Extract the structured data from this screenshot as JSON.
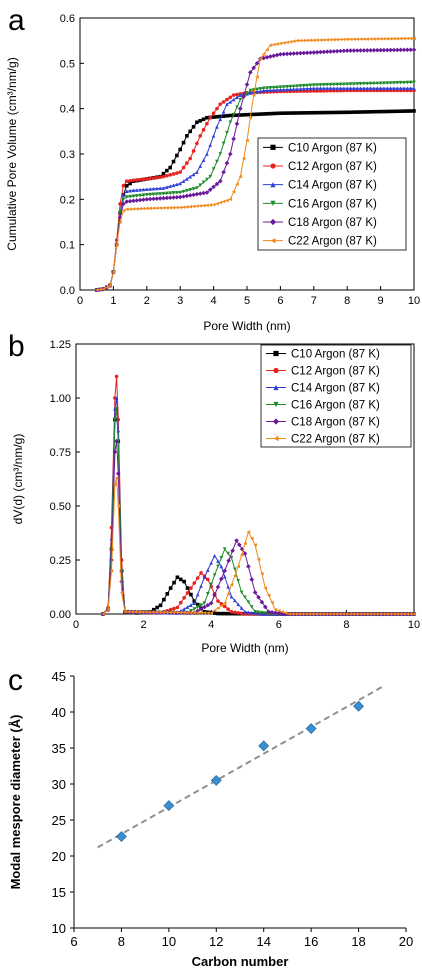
{
  "panel_labels": [
    "a",
    "b",
    "c"
  ],
  "chart_data": [
    {
      "type": "line",
      "xlabel": "Pore Width (nm)",
      "ylabel": "Cumulative Pore Volume (cm³/nm/g)",
      "xlim": [
        0,
        10
      ],
      "ylim": [
        0,
        0.6
      ],
      "xticks": [
        "0",
        "1",
        "2",
        "3",
        "4",
        "5",
        "6",
        "7",
        "8",
        "9",
        "10"
      ],
      "yticks": [
        "0.0",
        "0.1",
        "0.2",
        "0.3",
        "0.4",
        "0.5",
        "0.6"
      ],
      "legend_position": "right",
      "series": [
        {
          "name": "C10 Argon (87 K)",
          "color": "#000000",
          "marker": "square",
          "points": [
            [
              0.5,
              0
            ],
            [
              0.7,
              0.002
            ],
            [
              0.9,
              0.01
            ],
            [
              1.0,
              0.04
            ],
            [
              1.1,
              0.1
            ],
            [
              1.2,
              0.17
            ],
            [
              1.3,
              0.21
            ],
            [
              1.4,
              0.23
            ],
            [
              1.6,
              0.24
            ],
            [
              2.0,
              0.245
            ],
            [
              2.4,
              0.25
            ],
            [
              2.7,
              0.27
            ],
            [
              3.0,
              0.31
            ],
            [
              3.2,
              0.34
            ],
            [
              3.5,
              0.37
            ],
            [
              3.8,
              0.38
            ],
            [
              4.5,
              0.385
            ],
            [
              6.0,
              0.39
            ],
            [
              8.0,
              0.392
            ],
            [
              10.0,
              0.395
            ]
          ]
        },
        {
          "name": "C12 Argon (87 K)",
          "color": "#e8221e",
          "marker": "circle",
          "points": [
            [
              0.5,
              0
            ],
            [
              0.7,
              0.002
            ],
            [
              0.9,
              0.01
            ],
            [
              1.0,
              0.04
            ],
            [
              1.1,
              0.11
            ],
            [
              1.2,
              0.19
            ],
            [
              1.3,
              0.23
            ],
            [
              1.4,
              0.24
            ],
            [
              1.6,
              0.242
            ],
            [
              2.0,
              0.245
            ],
            [
              2.5,
              0.25
            ],
            [
              3.0,
              0.26
            ],
            [
              3.3,
              0.29
            ],
            [
              3.6,
              0.34
            ],
            [
              3.9,
              0.38
            ],
            [
              4.2,
              0.41
            ],
            [
              4.6,
              0.43
            ],
            [
              5.0,
              0.435
            ],
            [
              6.0,
              0.438
            ],
            [
              8.0,
              0.44
            ],
            [
              10.0,
              0.44
            ]
          ]
        },
        {
          "name": "C14 Argon (87 K)",
          "color": "#2f3fd6",
          "marker": "triangle",
          "points": [
            [
              0.5,
              0
            ],
            [
              0.7,
              0.002
            ],
            [
              0.9,
              0.01
            ],
            [
              1.0,
              0.04
            ],
            [
              1.1,
              0.1
            ],
            [
              1.2,
              0.17
            ],
            [
              1.3,
              0.21
            ],
            [
              1.4,
              0.218
            ],
            [
              1.6,
              0.22
            ],
            [
              2.5,
              0.225
            ],
            [
              3.0,
              0.235
            ],
            [
              3.5,
              0.26
            ],
            [
              3.8,
              0.3
            ],
            [
              4.1,
              0.36
            ],
            [
              4.4,
              0.41
            ],
            [
              4.8,
              0.43
            ],
            [
              5.5,
              0.44
            ],
            [
              7.0,
              0.445
            ],
            [
              10.0,
              0.445
            ]
          ]
        },
        {
          "name": "C16 Argon (87 K)",
          "color": "#1f8a2a",
          "marker": "triangle-down",
          "points": [
            [
              0.5,
              0
            ],
            [
              0.7,
              0.002
            ],
            [
              0.9,
              0.01
            ],
            [
              1.0,
              0.04
            ],
            [
              1.1,
              0.1
            ],
            [
              1.2,
              0.17
            ],
            [
              1.3,
              0.2
            ],
            [
              1.4,
              0.205
            ],
            [
              2.0,
              0.21
            ],
            [
              3.0,
              0.215
            ],
            [
              3.5,
              0.225
            ],
            [
              3.9,
              0.25
            ],
            [
              4.2,
              0.3
            ],
            [
              4.5,
              0.37
            ],
            [
              4.8,
              0.42
            ],
            [
              5.1,
              0.44
            ],
            [
              5.5,
              0.445
            ],
            [
              7.0,
              0.452
            ],
            [
              10.0,
              0.458
            ]
          ]
        },
        {
          "name": "C18 Argon (87 K)",
          "color": "#6a1a9a",
          "marker": "diamond",
          "points": [
            [
              0.5,
              0
            ],
            [
              0.7,
              0.002
            ],
            [
              0.9,
              0.01
            ],
            [
              1.0,
              0.04
            ],
            [
              1.1,
              0.1
            ],
            [
              1.2,
              0.16
            ],
            [
              1.3,
              0.19
            ],
            [
              1.4,
              0.195
            ],
            [
              2.0,
              0.2
            ],
            [
              3.0,
              0.205
            ],
            [
              3.8,
              0.215
            ],
            [
              4.2,
              0.24
            ],
            [
              4.5,
              0.3
            ],
            [
              4.8,
              0.4
            ],
            [
              5.1,
              0.48
            ],
            [
              5.4,
              0.51
            ],
            [
              6.0,
              0.52
            ],
            [
              8.0,
              0.528
            ],
            [
              10.0,
              0.53
            ]
          ]
        },
        {
          "name": "C22 Argon (87 K)",
          "color": "#f08a1c",
          "marker": "triangle-left",
          "points": [
            [
              0.5,
              0
            ],
            [
              0.7,
              0.002
            ],
            [
              0.9,
              0.01
            ],
            [
              1.0,
              0.04
            ],
            [
              1.1,
              0.1
            ],
            [
              1.2,
              0.15
            ],
            [
              1.3,
              0.175
            ],
            [
              1.4,
              0.178
            ],
            [
              2.0,
              0.18
            ],
            [
              3.0,
              0.182
            ],
            [
              4.0,
              0.188
            ],
            [
              4.5,
              0.2
            ],
            [
              4.8,
              0.25
            ],
            [
              5.0,
              0.33
            ],
            [
              5.2,
              0.43
            ],
            [
              5.4,
              0.51
            ],
            [
              5.7,
              0.54
            ],
            [
              6.5,
              0.55
            ],
            [
              8.0,
              0.553
            ],
            [
              10.0,
              0.555
            ]
          ]
        }
      ]
    },
    {
      "type": "line",
      "xlabel": "Pore Width (nm)",
      "ylabel": "dV(d) (cm³/nm/g)",
      "xlim": [
        0,
        10
      ],
      "ylim": [
        0,
        1.25
      ],
      "xticks": [
        "0",
        "2",
        "4",
        "6",
        "8",
        "10"
      ],
      "yticks": [
        "0.00",
        "0.25",
        "0.50",
        "0.75",
        "1.00",
        "1.25"
      ],
      "legend_position": "top-right",
      "series": [
        {
          "name": "C10 Argon (87 K)",
          "color": "#000000",
          "marker": "square",
          "points": [
            [
              0.8,
              0
            ],
            [
              0.95,
              0.02
            ],
            [
              1.05,
              0.3
            ],
            [
              1.15,
              0.9
            ],
            [
              1.2,
              0.95
            ],
            [
              1.25,
              0.8
            ],
            [
              1.35,
              0.2
            ],
            [
              1.45,
              0.01
            ],
            [
              1.8,
              0.005
            ],
            [
              2.2,
              0.01
            ],
            [
              2.5,
              0.04
            ],
            [
              2.8,
              0.12
            ],
            [
              3.0,
              0.17
            ],
            [
              3.2,
              0.15
            ],
            [
              3.5,
              0.06
            ],
            [
              3.8,
              0.01
            ],
            [
              4.2,
              0.002
            ],
            [
              6.0,
              0
            ],
            [
              10.0,
              0
            ]
          ]
        },
        {
          "name": "C12 Argon (87 K)",
          "color": "#e8221e",
          "marker": "circle",
          "points": [
            [
              0.8,
              0
            ],
            [
              0.95,
              0.03
            ],
            [
              1.05,
              0.4
            ],
            [
              1.15,
              1.0
            ],
            [
              1.2,
              1.1
            ],
            [
              1.25,
              0.9
            ],
            [
              1.35,
              0.25
            ],
            [
              1.45,
              0.01
            ],
            [
              2.5,
              0.005
            ],
            [
              3.0,
              0.03
            ],
            [
              3.4,
              0.12
            ],
            [
              3.7,
              0.19
            ],
            [
              3.9,
              0.16
            ],
            [
              4.2,
              0.06
            ],
            [
              4.6,
              0.01
            ],
            [
              5.0,
              0
            ],
            [
              10.0,
              0
            ]
          ]
        },
        {
          "name": "C14 Argon (87 K)",
          "color": "#2f3fd6",
          "marker": "triangle",
          "points": [
            [
              0.8,
              0
            ],
            [
              0.95,
              0.02
            ],
            [
              1.05,
              0.35
            ],
            [
              1.15,
              0.95
            ],
            [
              1.2,
              1.0
            ],
            [
              1.25,
              0.85
            ],
            [
              1.35,
              0.2
            ],
            [
              1.45,
              0.01
            ],
            [
              3.0,
              0.005
            ],
            [
              3.5,
              0.05
            ],
            [
              3.8,
              0.17
            ],
            [
              4.1,
              0.27
            ],
            [
              4.3,
              0.22
            ],
            [
              4.6,
              0.08
            ],
            [
              5.0,
              0.01
            ],
            [
              5.5,
              0
            ],
            [
              10.0,
              0
            ]
          ]
        },
        {
          "name": "C16 Argon (87 K)",
          "color": "#1f8a2a",
          "marker": "triangle-down",
          "points": [
            [
              0.8,
              0
            ],
            [
              0.95,
              0.02
            ],
            [
              1.05,
              0.3
            ],
            [
              1.15,
              0.9
            ],
            [
              1.2,
              0.95
            ],
            [
              1.25,
              0.8
            ],
            [
              1.35,
              0.2
            ],
            [
              1.45,
              0.01
            ],
            [
              3.3,
              0.005
            ],
            [
              3.8,
              0.05
            ],
            [
              4.1,
              0.18
            ],
            [
              4.4,
              0.3
            ],
            [
              4.6,
              0.26
            ],
            [
              4.9,
              0.1
            ],
            [
              5.3,
              0.01
            ],
            [
              5.8,
              0
            ],
            [
              10.0,
              0
            ]
          ]
        },
        {
          "name": "C18 Argon (87 K)",
          "color": "#6a1a9a",
          "marker": "diamond",
          "points": [
            [
              0.8,
              0
            ],
            [
              0.95,
              0.02
            ],
            [
              1.05,
              0.25
            ],
            [
              1.15,
              0.75
            ],
            [
              1.2,
              0.8
            ],
            [
              1.25,
              0.65
            ],
            [
              1.35,
              0.15
            ],
            [
              1.45,
              0.01
            ],
            [
              3.5,
              0.005
            ],
            [
              4.0,
              0.05
            ],
            [
              4.4,
              0.2
            ],
            [
              4.75,
              0.34
            ],
            [
              5.0,
              0.28
            ],
            [
              5.3,
              0.1
            ],
            [
              5.7,
              0.01
            ],
            [
              6.2,
              0
            ],
            [
              10.0,
              0
            ]
          ]
        },
        {
          "name": "C22 Argon (87 K)",
          "color": "#f08a1c",
          "marker": "triangle-left",
          "points": [
            [
              0.8,
              0
            ],
            [
              0.95,
              0.02
            ],
            [
              1.05,
              0.2
            ],
            [
              1.15,
              0.6
            ],
            [
              1.2,
              0.63
            ],
            [
              1.25,
              0.5
            ],
            [
              1.35,
              0.1
            ],
            [
              1.45,
              0.01
            ],
            [
              4.0,
              0.005
            ],
            [
              4.4,
              0.05
            ],
            [
              4.8,
              0.22
            ],
            [
              5.1,
              0.38
            ],
            [
              5.3,
              0.32
            ],
            [
              5.6,
              0.12
            ],
            [
              5.9,
              0.02
            ],
            [
              6.3,
              0
            ],
            [
              10.0,
              0
            ]
          ]
        }
      ]
    },
    {
      "type": "scatter",
      "xlabel": "Carbon number",
      "ylabel": "Modal mespore diameter (Å)",
      "xlim": [
        6,
        20
      ],
      "ylim": [
        10,
        45
      ],
      "xticks": [
        "6",
        "8",
        "10",
        "12",
        "14",
        "16",
        "18",
        "20"
      ],
      "yticks": [
        "10",
        "15",
        "20",
        "25",
        "30",
        "35",
        "40",
        "45"
      ],
      "marker_color": "#3a8fd0",
      "points": [
        [
          8,
          22.7
        ],
        [
          10,
          27.0
        ],
        [
          12,
          30.5
        ],
        [
          14,
          35.3
        ],
        [
          16,
          37.7
        ],
        [
          18,
          40.8
        ]
      ],
      "fit_line": {
        "style": "dashed",
        "color": "#909090",
        "x": [
          7,
          19
        ],
        "y": [
          21.2,
          43.5
        ]
      }
    }
  ]
}
